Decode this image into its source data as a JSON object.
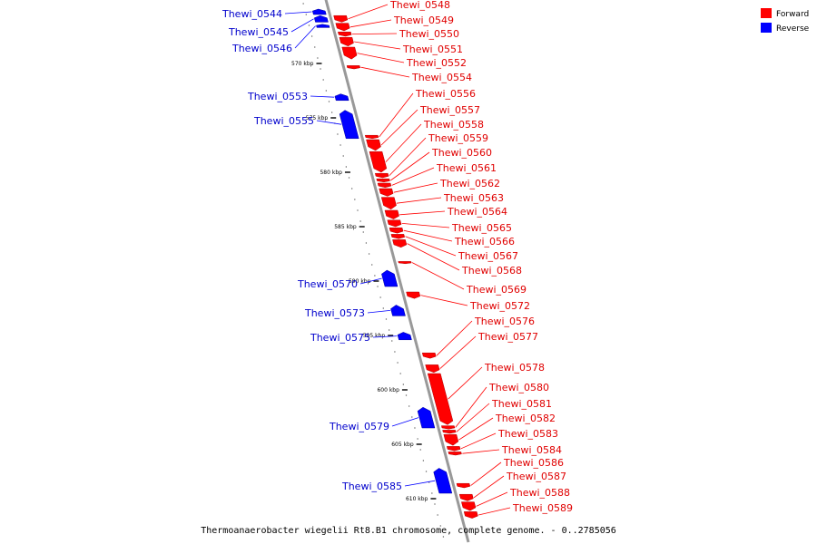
{
  "caption": "Thermoanaerobacter wiegelii Rt8.B1 chromosome, complete genome. - 0..2785056",
  "legend": [
    {
      "name": "Forward",
      "color": "#ff0000"
    },
    {
      "name": "Reverse",
      "color": "#0000ff"
    }
  ],
  "colors": {
    "forward": "#ff0000",
    "reverse": "#0000ff",
    "forward_label": "#e00000",
    "reverse_label": "#0000cc",
    "axis": "#999999"
  },
  "ticks": [
    {
      "kbp": 570,
      "label": "570 kbp"
    },
    {
      "kbp": 575,
      "label": "575 kbp"
    },
    {
      "kbp": 580,
      "label": "580 kbp"
    },
    {
      "kbp": 585,
      "label": "585 kbp"
    },
    {
      "kbp": 590,
      "label": "590 kbp"
    },
    {
      "kbp": 595,
      "label": "595 kbp"
    },
    {
      "kbp": 600,
      "label": "600 kbp"
    },
    {
      "kbp": 605,
      "label": "605 kbp"
    },
    {
      "kbp": 610,
      "label": "610 kbp"
    }
  ],
  "forward_genes": [
    {
      "name": "Thewi_0548",
      "start": 565.6,
      "end": 566.2
    },
    {
      "name": "Thewi_0549",
      "start": 566.3,
      "end": 567.0
    },
    {
      "name": "Thewi_0550",
      "start": 567.1,
      "end": 567.5
    },
    {
      "name": "Thewi_0551",
      "start": 567.6,
      "end": 568.4
    },
    {
      "name": "Thewi_0552",
      "start": 568.5,
      "end": 569.6
    },
    {
      "name": "Thewi_0554",
      "start": 570.2,
      "end": 570.5
    },
    {
      "name": "Thewi_0556",
      "start": 576.6,
      "end": 576.9
    },
    {
      "name": "Thewi_0557",
      "start": 577.0,
      "end": 578.0
    },
    {
      "name": "Thewi_0558",
      "start": 578.1,
      "end": 580.0
    },
    {
      "name": "Thewi_0559",
      "start": 580.1,
      "end": 580.5
    },
    {
      "name": "Thewi_0560",
      "start": 580.6,
      "end": 580.9
    },
    {
      "name": "Thewi_0561",
      "start": 581.0,
      "end": 581.4
    },
    {
      "name": "Thewi_0562",
      "start": 581.5,
      "end": 582.2
    },
    {
      "name": "Thewi_0563",
      "start": 582.3,
      "end": 583.4
    },
    {
      "name": "Thewi_0564",
      "start": 583.5,
      "end": 584.3
    },
    {
      "name": "Thewi_0565",
      "start": 584.4,
      "end": 585.0
    },
    {
      "name": "Thewi_0566",
      "start": 585.1,
      "end": 585.6
    },
    {
      "name": "Thewi_0567",
      "start": 585.7,
      "end": 586.1
    },
    {
      "name": "Thewi_0568",
      "start": 586.2,
      "end": 586.9
    },
    {
      "name": "Thewi_0569",
      "start": 588.2,
      "end": 588.4
    },
    {
      "name": "Thewi_0572",
      "start": 591.0,
      "end": 591.6
    },
    {
      "name": "Thewi_0576",
      "start": 596.6,
      "end": 597.1
    },
    {
      "name": "Thewi_0577",
      "start": 597.7,
      "end": 598.4
    },
    {
      "name": "Thewi_0578",
      "start": 598.5,
      "end": 603.2
    },
    {
      "name": "Thewi_0580",
      "start": 603.3,
      "end": 603.6
    },
    {
      "name": "Thewi_0581",
      "start": 603.7,
      "end": 604.0
    },
    {
      "name": "Thewi_0582",
      "start": 604.1,
      "end": 605.1
    },
    {
      "name": "Thewi_0583",
      "start": 605.2,
      "end": 605.6
    },
    {
      "name": "Thewi_0584",
      "start": 605.7,
      "end": 606.0
    },
    {
      "name": "Thewi_0586",
      "start": 608.6,
      "end": 609.0
    },
    {
      "name": "Thewi_0587",
      "start": 609.6,
      "end": 610.2
    },
    {
      "name": "Thewi_0588",
      "start": 610.3,
      "end": 611.1
    },
    {
      "name": "Thewi_0589",
      "start": 611.2,
      "end": 611.8
    }
  ],
  "reverse_genes": [
    {
      "name": "Thewi_0544",
      "start": 565.0,
      "end": 565.5
    },
    {
      "name": "Thewi_0545",
      "start": 565.6,
      "end": 566.2
    },
    {
      "name": "Thewi_0546",
      "start": 566.4,
      "end": 566.7
    },
    {
      "name": "Thewi_0553",
      "start": 572.8,
      "end": 573.4
    },
    {
      "name": "Thewi_0555",
      "start": 574.3,
      "end": 576.9
    },
    {
      "name": "Thewi_0570",
      "start": 589.0,
      "end": 590.5
    },
    {
      "name": "Thewi_0573",
      "start": 592.2,
      "end": 593.2
    },
    {
      "name": "Thewi_0575",
      "start": 594.7,
      "end": 595.4
    },
    {
      "name": "Thewi_0579",
      "start": 601.6,
      "end": 603.5
    },
    {
      "name": "Thewi_0585",
      "start": 607.2,
      "end": 609.5
    }
  ]
}
